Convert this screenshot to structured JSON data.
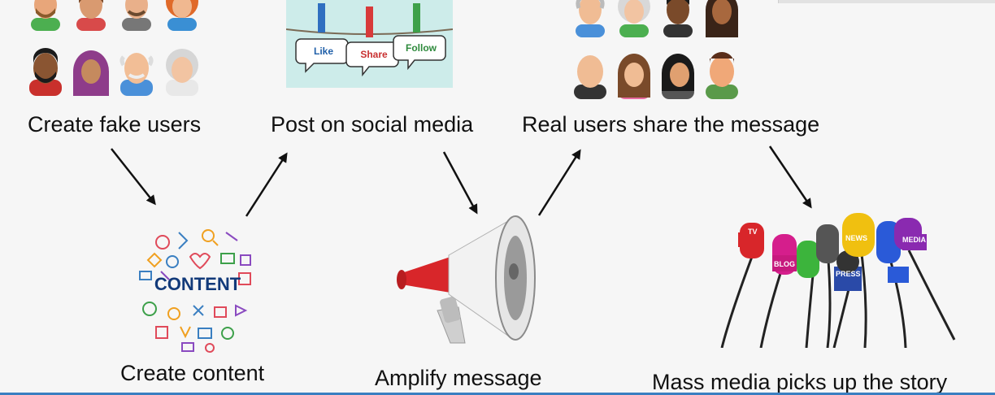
{
  "steps": {
    "fake_users": "Create fake users",
    "post": "Post on social media",
    "real_users": "Real users share the message",
    "content": "Create content",
    "amplify": "Amplify message",
    "mass_media": "Mass media picks up the story"
  },
  "clothespin_tags": [
    "Like",
    "Share",
    "Follow"
  ],
  "content_word": "CONTENT",
  "mic_tags": [
    "TV",
    "BLOG",
    "PRESS",
    "NEWS",
    "MEDIA"
  ]
}
